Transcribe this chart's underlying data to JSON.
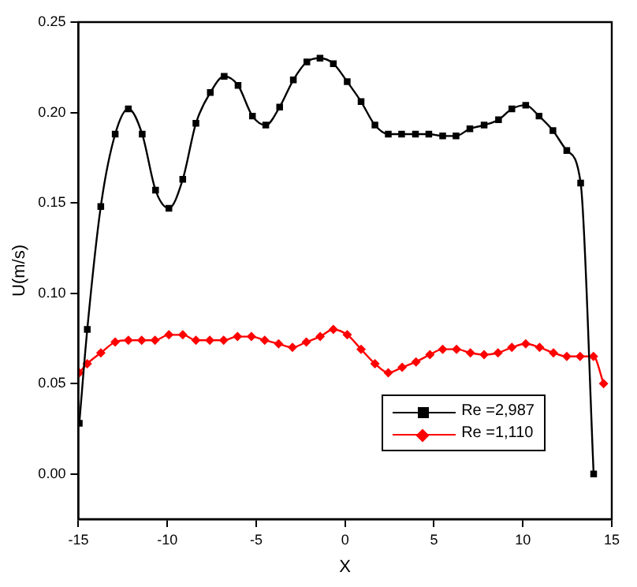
{
  "chart_data": {
    "type": "line",
    "xlabel": "X",
    "ylabel": "U(m/s)",
    "xlim": [
      -15,
      15
    ],
    "xticks": [
      -15,
      -10,
      -5,
      0,
      5,
      10,
      15
    ],
    "ylim": [
      -0.025,
      0.25
    ],
    "yticks": [
      {
        "value": 0,
        "label": "0.00"
      },
      {
        "value": 0.05,
        "label": "0.05"
      },
      {
        "value": 0.1,
        "label": "0.10"
      },
      {
        "value": 0.15,
        "label": "0.15"
      },
      {
        "value": 0.2,
        "label": "0.20"
      },
      {
        "value": 0.25,
        "label": "0.25"
      }
    ],
    "grid": false,
    "legend": "bottom right",
    "series": [
      {
        "name": "Re =2,987",
        "color": "#000000",
        "marker": "square",
        "x": [
          -14.95,
          -14.5,
          -13.74,
          -12.93,
          -12.19,
          -11.41,
          -10.66,
          -9.91,
          -9.13,
          -8.39,
          -7.58,
          -6.8,
          -6.02,
          -5.21,
          -4.46,
          -3.68,
          -2.91,
          -2.15,
          -1.41,
          -0.66,
          0.12,
          0.9,
          1.68,
          2.43,
          3.18,
          3.96,
          4.71,
          5.49,
          6.24,
          7.02,
          7.82,
          8.63,
          9.38,
          10.16,
          10.91,
          11.69,
          12.47,
          13.25,
          13.98
        ],
        "values": [
          0.028,
          0.08,
          0.148,
          0.188,
          0.202,
          0.188,
          0.157,
          0.147,
          0.163,
          0.194,
          0.211,
          0.22,
          0.215,
          0.198,
          0.193,
          0.203,
          0.218,
          0.228,
          0.23,
          0.227,
          0.217,
          0.206,
          0.193,
          0.188,
          0.188,
          0.188,
          0.188,
          0.187,
          0.187,
          0.191,
          0.193,
          0.196,
          0.202,
          0.204,
          0.198,
          0.19,
          0.179,
          0.161,
          0.0
        ]
      },
      {
        "name": "Re =1,110",
        "color": "#ff0000",
        "marker": "diamond",
        "x": [
          -14.95,
          -14.5,
          -13.74,
          -12.93,
          -12.19,
          -11.44,
          -10.69,
          -9.91,
          -9.13,
          -8.39,
          -7.61,
          -6.83,
          -6.05,
          -5.27,
          -4.52,
          -3.74,
          -2.96,
          -2.18,
          -1.4,
          -0.66,
          0.12,
          0.9,
          1.68,
          2.43,
          3.21,
          3.99,
          4.77,
          5.49,
          6.27,
          7.05,
          7.82,
          8.6,
          9.38,
          10.16,
          10.94,
          11.72,
          12.47,
          13.22,
          13.97,
          14.54
        ],
        "values": [
          0.056,
          0.061,
          0.067,
          0.073,
          0.074,
          0.074,
          0.074,
          0.077,
          0.077,
          0.074,
          0.074,
          0.074,
          0.076,
          0.076,
          0.074,
          0.072,
          0.07,
          0.073,
          0.076,
          0.08,
          0.077,
          0.069,
          0.061,
          0.056,
          0.059,
          0.062,
          0.066,
          0.069,
          0.069,
          0.067,
          0.066,
          0.067,
          0.07,
          0.072,
          0.07,
          0.067,
          0.065,
          0.065,
          0.065,
          0.05
        ]
      }
    ]
  }
}
